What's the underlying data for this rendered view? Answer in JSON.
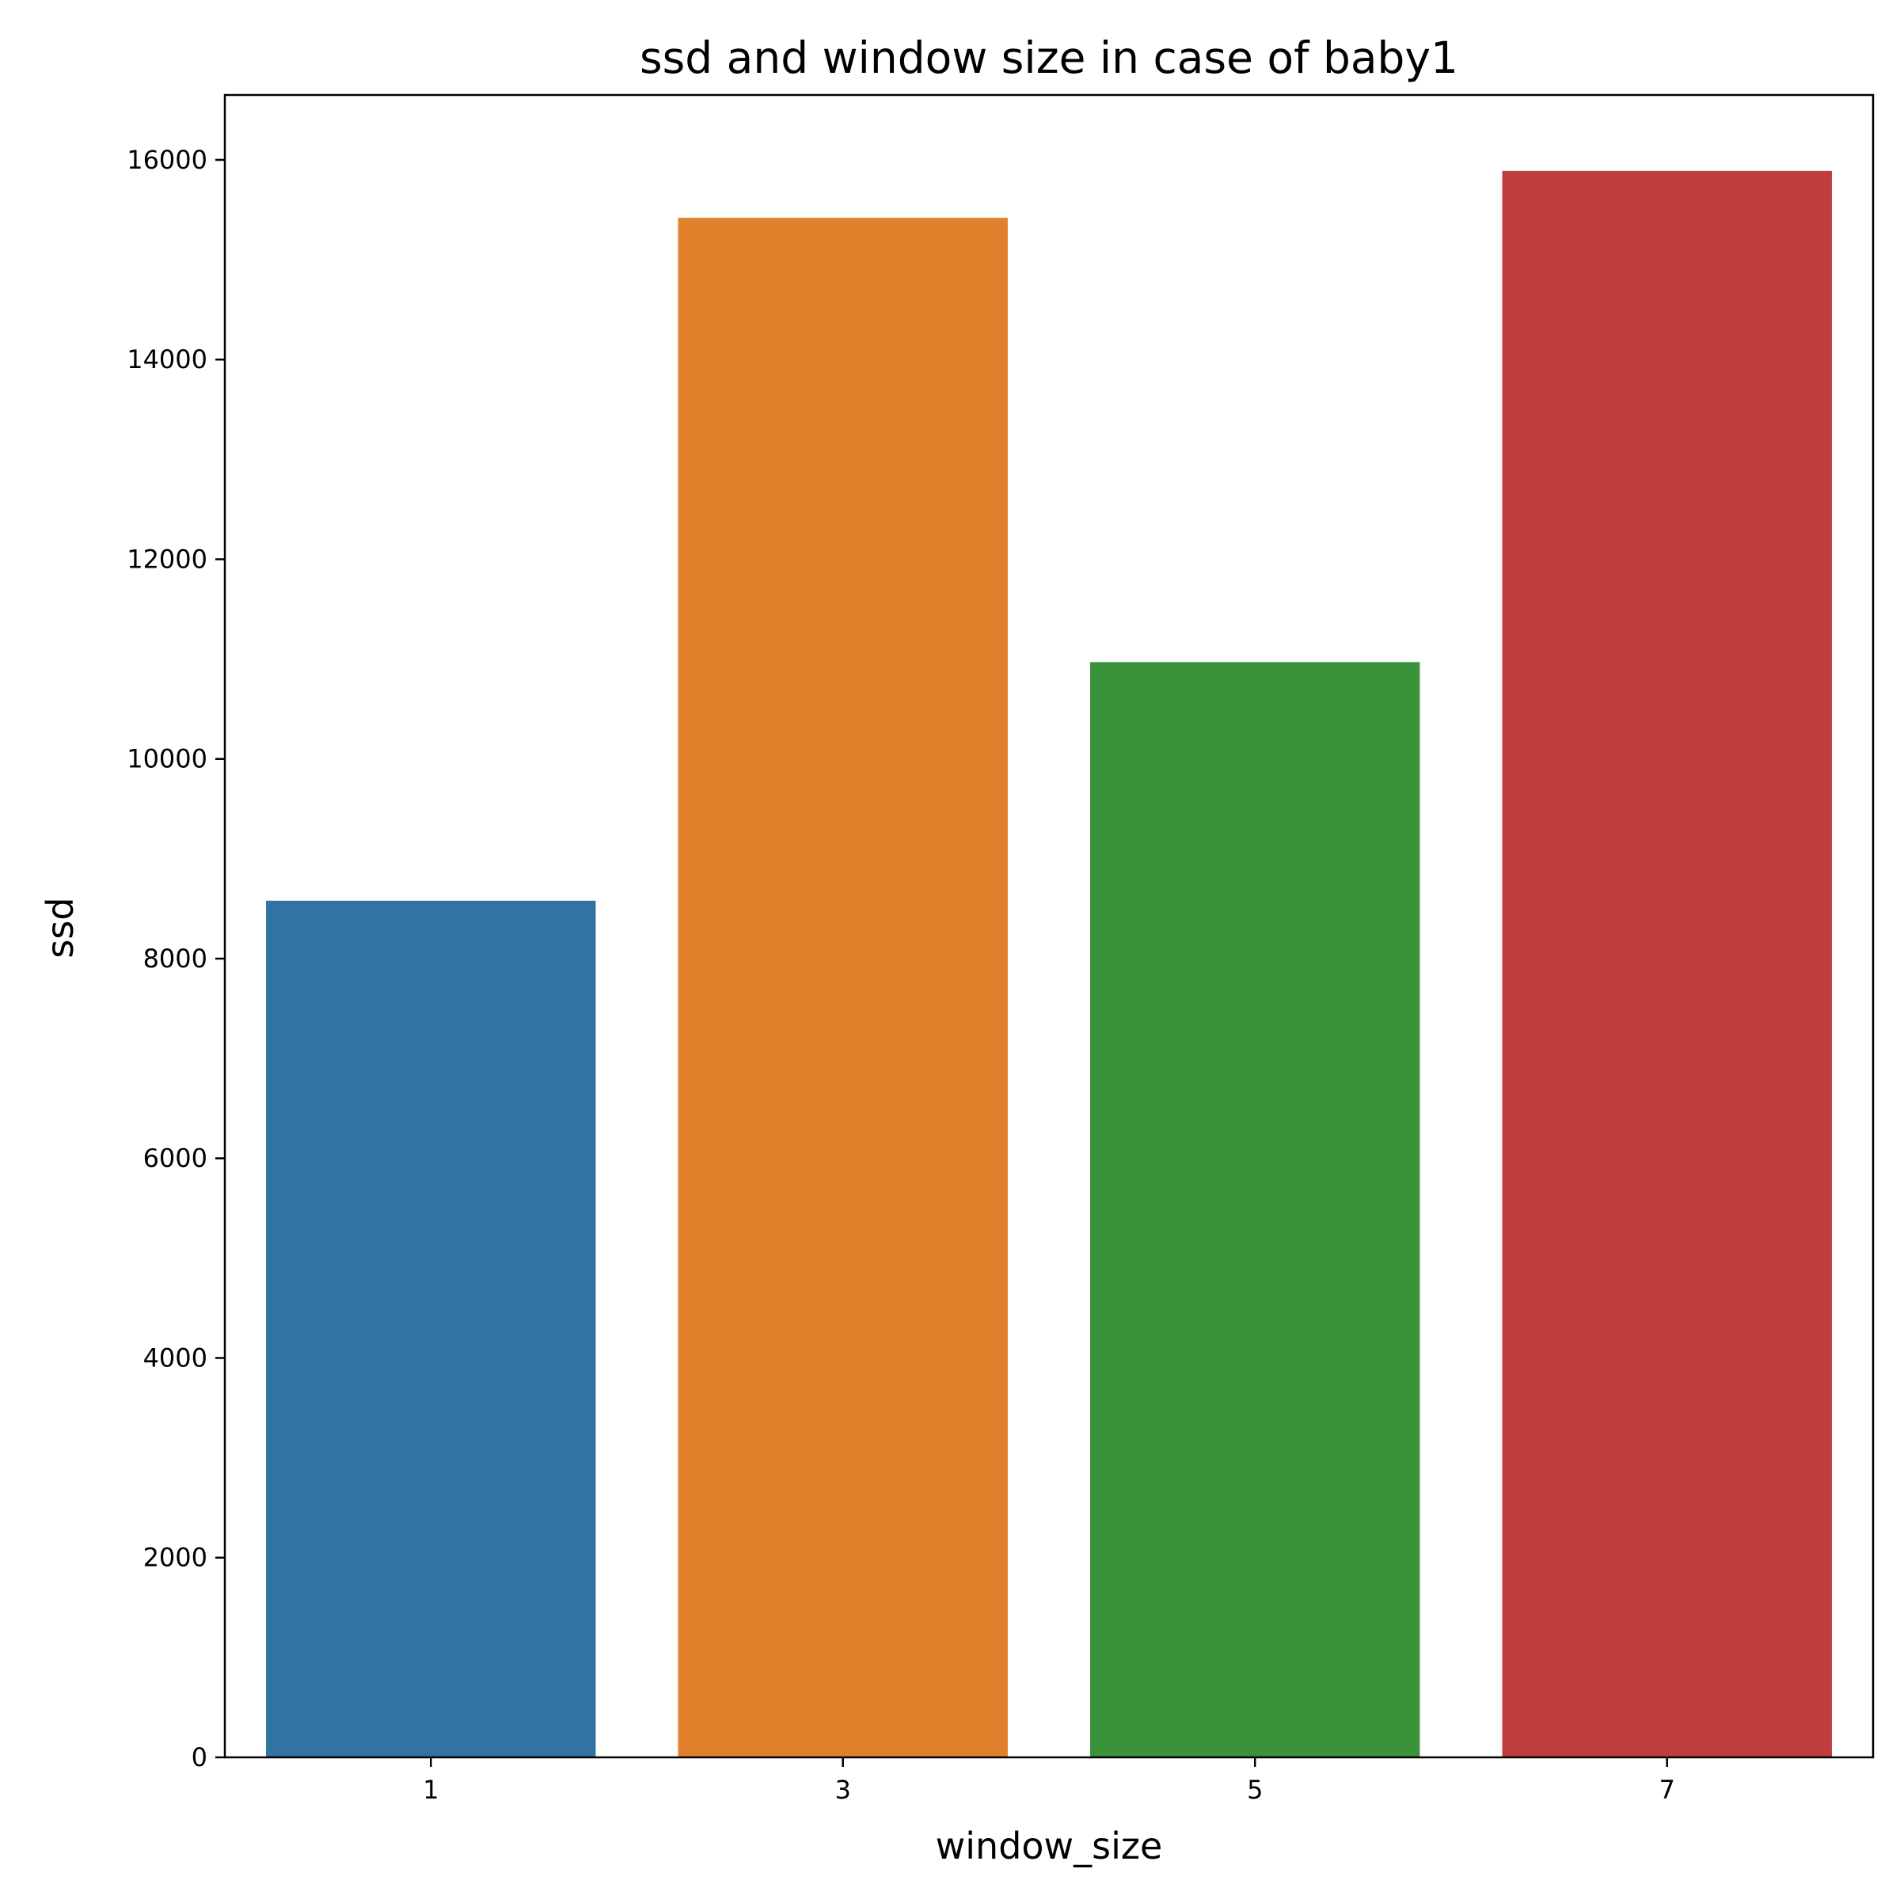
{
  "chart_data": {
    "type": "bar",
    "title": "ssd and window size in case of baby1",
    "xlabel": "window_size",
    "ylabel": "ssd",
    "categories": [
      "1",
      "3",
      "5",
      "7"
    ],
    "values": [
      8580,
      15420,
      10970,
      15890
    ],
    "colors": [
      "#3274a1",
      "#e1812c",
      "#3a923a",
      "#c03d3e"
    ],
    "ylim": [
      0,
      16650
    ],
    "yticks": [
      0,
      2000,
      4000,
      6000,
      8000,
      10000,
      12000,
      14000,
      16000
    ],
    "ytick_labels": [
      "0",
      "2000",
      "4000",
      "6000",
      "8000",
      "10000",
      "12000",
      "14000",
      "16000"
    ],
    "grid": false,
    "legend": "none"
  }
}
